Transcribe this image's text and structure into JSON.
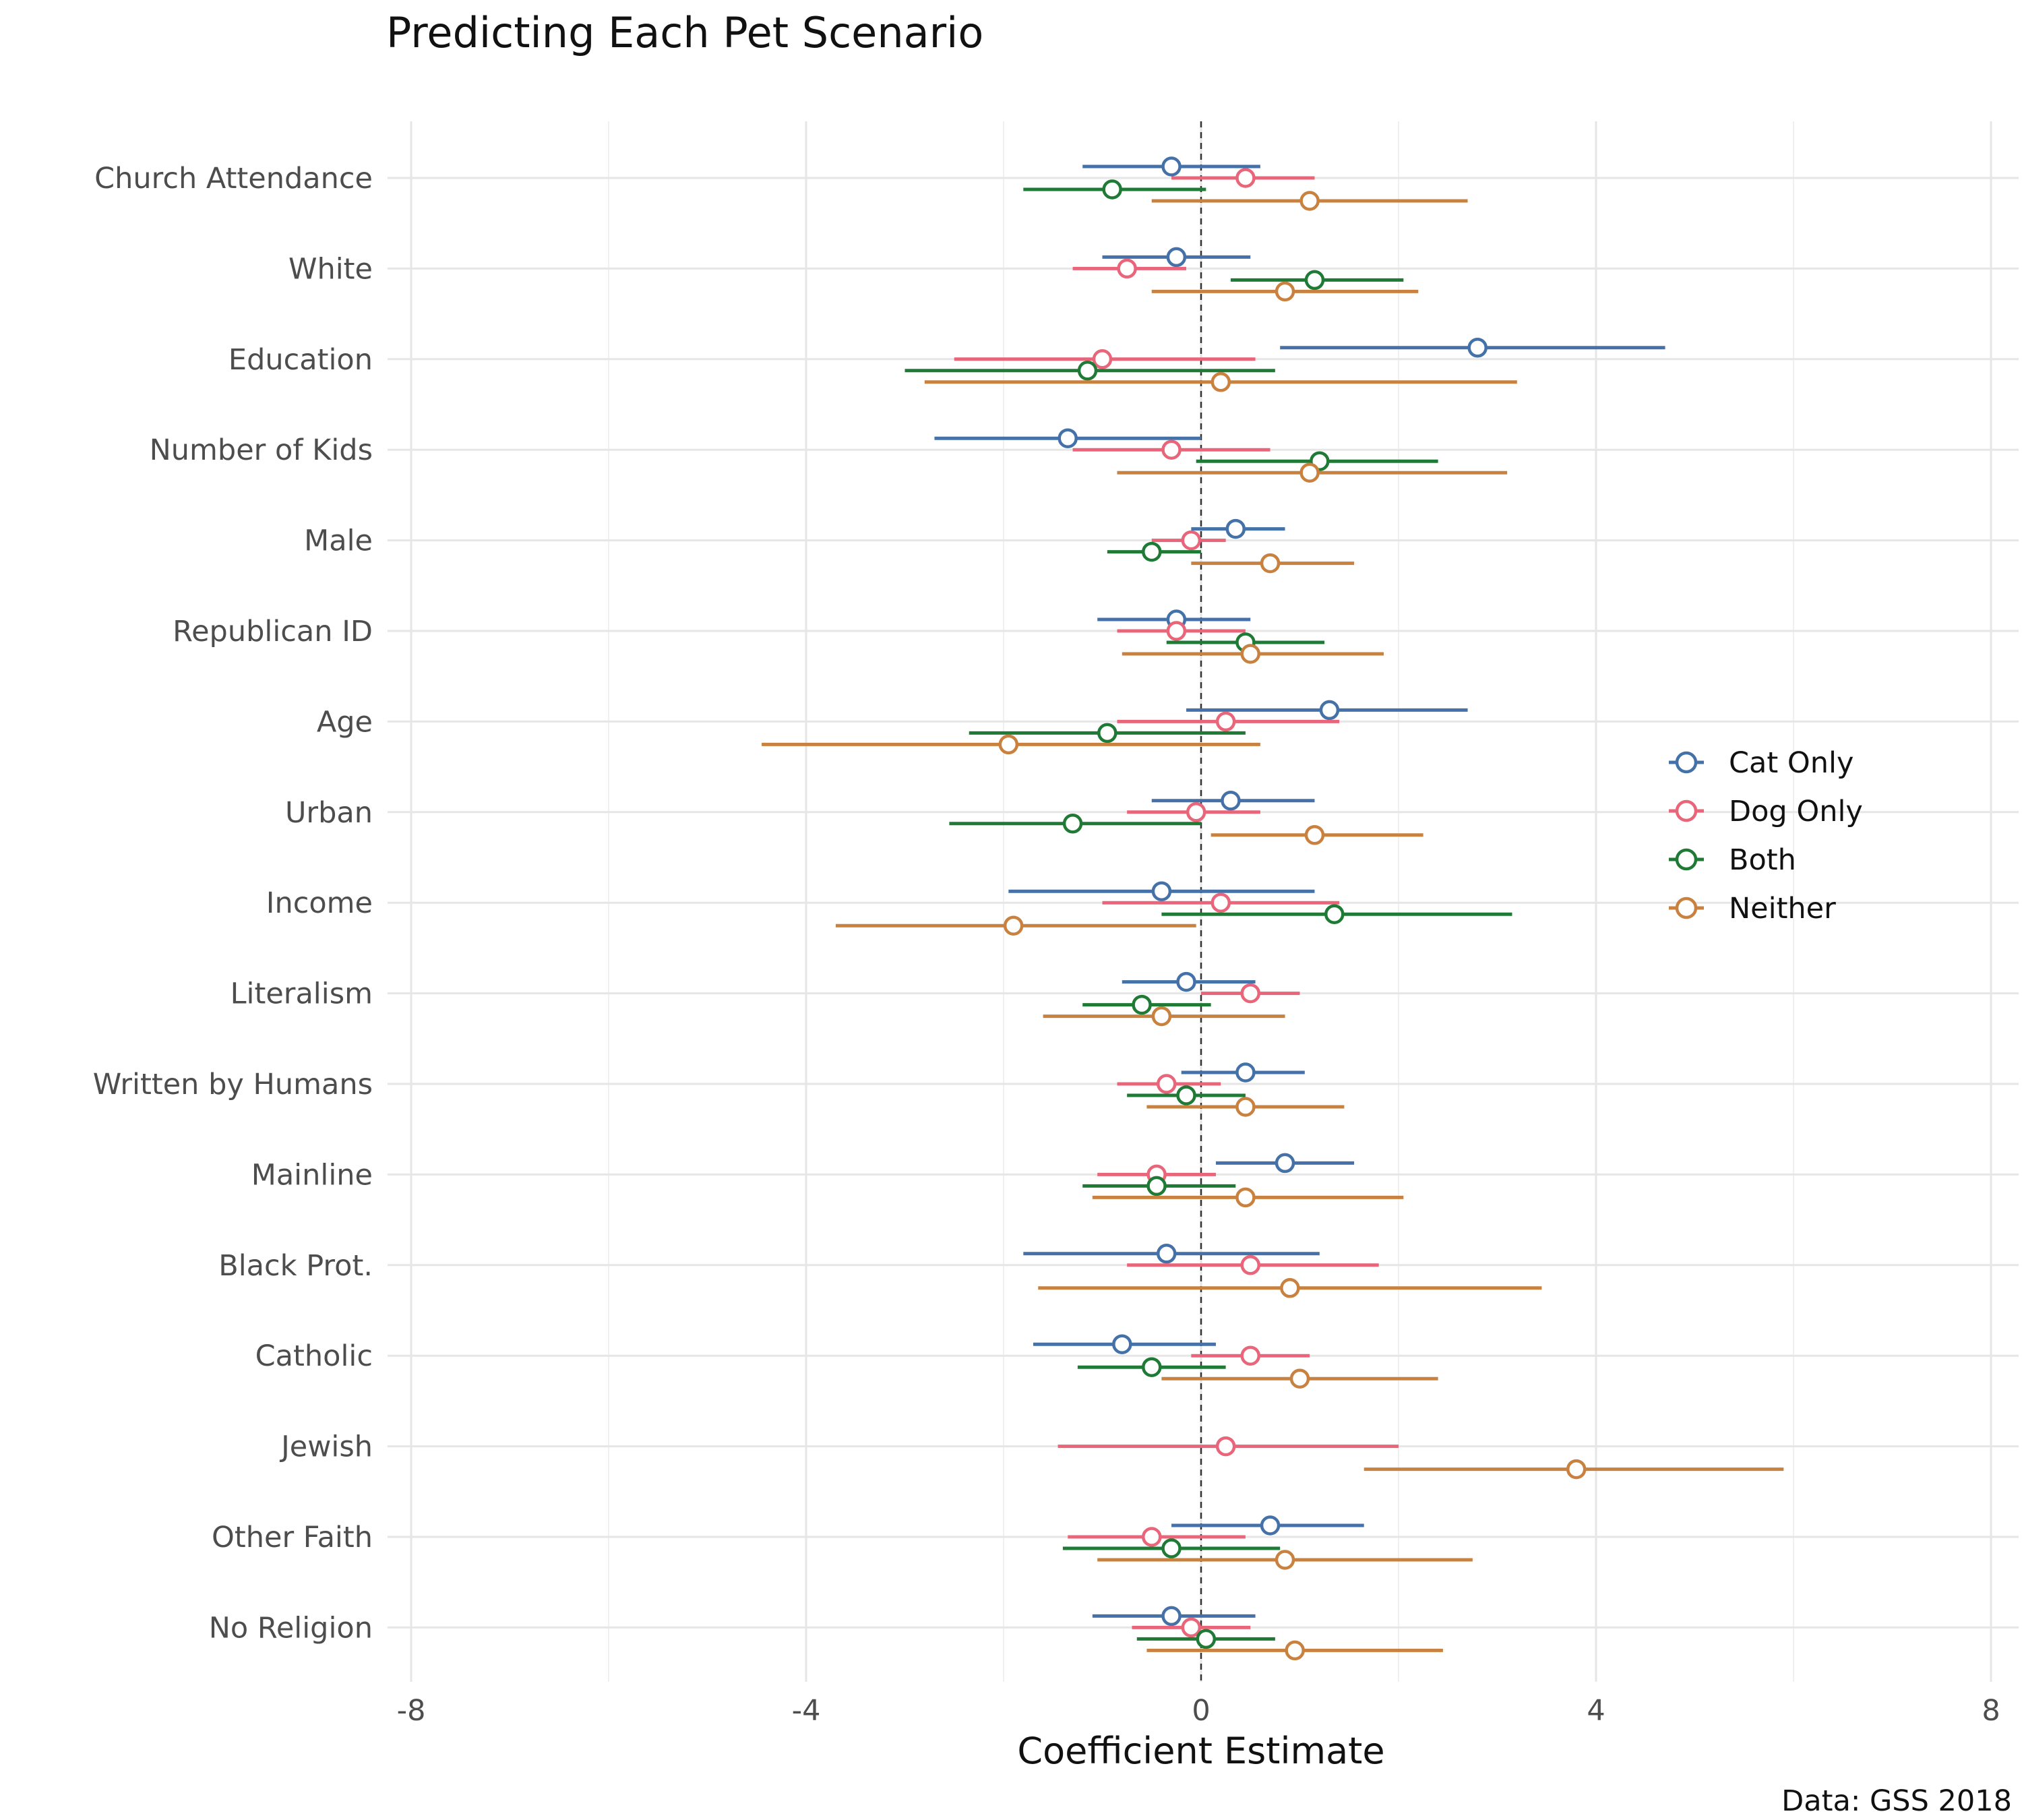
{
  "chart_data": {
    "type": "scatter",
    "subtype": "coefficient-plot-with-intervals",
    "title": "Predicting Each Pet Scenario",
    "xlabel": "Coefficient Estimate",
    "ylabel": "",
    "caption": "Data: GSS 2018",
    "xlim": [
      -8,
      8
    ],
    "xticks": [
      -8,
      -4,
      0,
      4,
      8
    ],
    "xtick_labels": [
      "-8",
      "-4",
      "0",
      "4",
      "8"
    ],
    "reference_line": 0,
    "grid": true,
    "legend_position": "right",
    "categories": [
      "Church Attendance",
      "White",
      "Education",
      "Number of Kids",
      "Male",
      "Republican ID",
      "Age",
      "Urban",
      "Income",
      "Literalism",
      "Written by Humans",
      "Mainline",
      "Black Prot.",
      "Catholic",
      "Jewish",
      "Other Faith",
      "No Religion"
    ],
    "series": [
      {
        "name": "Cat Only",
        "color": "#4472a8",
        "points": [
          {
            "category": "Church Attendance",
            "estimate": -0.3,
            "low": -1.2,
            "high": 0.6
          },
          {
            "category": "White",
            "estimate": -0.25,
            "low": -1.0,
            "high": 0.5
          },
          {
            "category": "Education",
            "estimate": 2.8,
            "low": 0.8,
            "high": 4.7
          },
          {
            "category": "Number of Kids",
            "estimate": -1.35,
            "low": -2.7,
            "high": 0.0
          },
          {
            "category": "Male",
            "estimate": 0.35,
            "low": -0.1,
            "high": 0.85
          },
          {
            "category": "Republican ID",
            "estimate": -0.25,
            "low": -1.05,
            "high": 0.5
          },
          {
            "category": "Age",
            "estimate": 1.3,
            "low": -0.15,
            "high": 2.7
          },
          {
            "category": "Urban",
            "estimate": 0.3,
            "low": -0.5,
            "high": 1.15
          },
          {
            "category": "Income",
            "estimate": -0.4,
            "low": -1.95,
            "high": 1.15
          },
          {
            "category": "Literalism",
            "estimate": -0.15,
            "low": -0.8,
            "high": 0.55
          },
          {
            "category": "Written by Humans",
            "estimate": 0.45,
            "low": -0.2,
            "high": 1.05
          },
          {
            "category": "Mainline",
            "estimate": 0.85,
            "low": 0.15,
            "high": 1.55
          },
          {
            "category": "Black Prot.",
            "estimate": -0.35,
            "low": -1.8,
            "high": 1.2
          },
          {
            "category": "Catholic",
            "estimate": -0.8,
            "low": -1.7,
            "high": 0.15
          },
          {
            "category": "Other Faith",
            "estimate": 0.7,
            "low": -0.3,
            "high": 1.65
          },
          {
            "category": "No Religion",
            "estimate": -0.3,
            "low": -1.1,
            "high": 0.55
          }
        ]
      },
      {
        "name": "Dog Only",
        "color": "#e8657a",
        "points": [
          {
            "category": "Church Attendance",
            "estimate": 0.45,
            "low": -0.3,
            "high": 1.15
          },
          {
            "category": "White",
            "estimate": -0.75,
            "low": -1.3,
            "high": -0.15
          },
          {
            "category": "Education",
            "estimate": -1.0,
            "low": -2.5,
            "high": 0.55
          },
          {
            "category": "Number of Kids",
            "estimate": -0.3,
            "low": -1.3,
            "high": 0.7
          },
          {
            "category": "Male",
            "estimate": -0.1,
            "low": -0.5,
            "high": 0.25
          },
          {
            "category": "Republican ID",
            "estimate": -0.25,
            "low": -0.85,
            "high": 0.45
          },
          {
            "category": "Age",
            "estimate": 0.25,
            "low": -0.85,
            "high": 1.4
          },
          {
            "category": "Urban",
            "estimate": -0.05,
            "low": -0.75,
            "high": 0.6
          },
          {
            "category": "Income",
            "estimate": 0.2,
            "low": -1.0,
            "high": 1.4
          },
          {
            "category": "Literalism",
            "estimate": 0.5,
            "low": 0.0,
            "high": 1.0
          },
          {
            "category": "Written by Humans",
            "estimate": -0.35,
            "low": -0.85,
            "high": 0.2
          },
          {
            "category": "Mainline",
            "estimate": -0.45,
            "low": -1.05,
            "high": 0.15
          },
          {
            "category": "Black Prot.",
            "estimate": 0.5,
            "low": -0.75,
            "high": 1.8
          },
          {
            "category": "Catholic",
            "estimate": 0.5,
            "low": -0.1,
            "high": 1.1
          },
          {
            "category": "Jewish",
            "estimate": 0.25,
            "low": -1.45,
            "high": 2.0
          },
          {
            "category": "Other Faith",
            "estimate": -0.5,
            "low": -1.35,
            "high": 0.45
          },
          {
            "category": "No Religion",
            "estimate": -0.1,
            "low": -0.7,
            "high": 0.5
          }
        ]
      },
      {
        "name": "Both",
        "color": "#1f7a35",
        "points": [
          {
            "category": "Church Attendance",
            "estimate": -0.9,
            "low": -1.8,
            "high": 0.05
          },
          {
            "category": "White",
            "estimate": 1.15,
            "low": 0.3,
            "high": 2.05
          },
          {
            "category": "Education",
            "estimate": -1.15,
            "low": -3.0,
            "high": 0.75
          },
          {
            "category": "Number of Kids",
            "estimate": 1.2,
            "low": -0.05,
            "high": 2.4
          },
          {
            "category": "Male",
            "estimate": -0.5,
            "low": -0.95,
            "high": 0.0
          },
          {
            "category": "Republican ID",
            "estimate": 0.45,
            "low": -0.35,
            "high": 1.25
          },
          {
            "category": "Age",
            "estimate": -0.95,
            "low": -2.35,
            "high": 0.45
          },
          {
            "category": "Urban",
            "estimate": -1.3,
            "low": -2.55,
            "high": 0.0
          },
          {
            "category": "Income",
            "estimate": 1.35,
            "low": -0.4,
            "high": 3.15
          },
          {
            "category": "Literalism",
            "estimate": -0.6,
            "low": -1.2,
            "high": 0.1
          },
          {
            "category": "Written by Humans",
            "estimate": -0.15,
            "low": -0.75,
            "high": 0.45
          },
          {
            "category": "Mainline",
            "estimate": -0.45,
            "low": -1.2,
            "high": 0.35
          },
          {
            "category": "Catholic",
            "estimate": -0.5,
            "low": -1.25,
            "high": 0.25
          },
          {
            "category": "Other Faith",
            "estimate": -0.3,
            "low": -1.4,
            "high": 0.8
          },
          {
            "category": "No Religion",
            "estimate": 0.05,
            "low": -0.65,
            "high": 0.75
          }
        ]
      },
      {
        "name": "Neither",
        "color": "#c9813f",
        "points": [
          {
            "category": "Church Attendance",
            "estimate": 1.1,
            "low": -0.5,
            "high": 2.7
          },
          {
            "category": "White",
            "estimate": 0.85,
            "low": -0.5,
            "high": 2.2
          },
          {
            "category": "Education",
            "estimate": 0.2,
            "low": -2.8,
            "high": 3.2
          },
          {
            "category": "Number of Kids",
            "estimate": 1.1,
            "low": -0.85,
            "high": 3.1
          },
          {
            "category": "Male",
            "estimate": 0.7,
            "low": -0.1,
            "high": 1.55
          },
          {
            "category": "Republican ID",
            "estimate": 0.5,
            "low": -0.8,
            "high": 1.85
          },
          {
            "category": "Age",
            "estimate": -1.95,
            "low": -4.45,
            "high": 0.6
          },
          {
            "category": "Urban",
            "estimate": 1.15,
            "low": 0.1,
            "high": 2.25
          },
          {
            "category": "Income",
            "estimate": -1.9,
            "low": -3.7,
            "high": -0.05
          },
          {
            "category": "Literalism",
            "estimate": -0.4,
            "low": -1.6,
            "high": 0.85
          },
          {
            "category": "Written by Humans",
            "estimate": 0.45,
            "low": -0.55,
            "high": 1.45
          },
          {
            "category": "Mainline",
            "estimate": 0.45,
            "low": -1.1,
            "high": 2.05
          },
          {
            "category": "Black Prot.",
            "estimate": 0.9,
            "low": -1.65,
            "high": 3.45
          },
          {
            "category": "Catholic",
            "estimate": 1.0,
            "low": -0.4,
            "high": 2.4
          },
          {
            "category": "Jewish",
            "estimate": 3.8,
            "low": 1.65,
            "high": 5.9
          },
          {
            "category": "Other Faith",
            "estimate": 0.85,
            "low": -1.05,
            "high": 2.75
          },
          {
            "category": "No Religion",
            "estimate": 0.95,
            "low": -0.55,
            "high": 2.45
          }
        ]
      }
    ]
  }
}
